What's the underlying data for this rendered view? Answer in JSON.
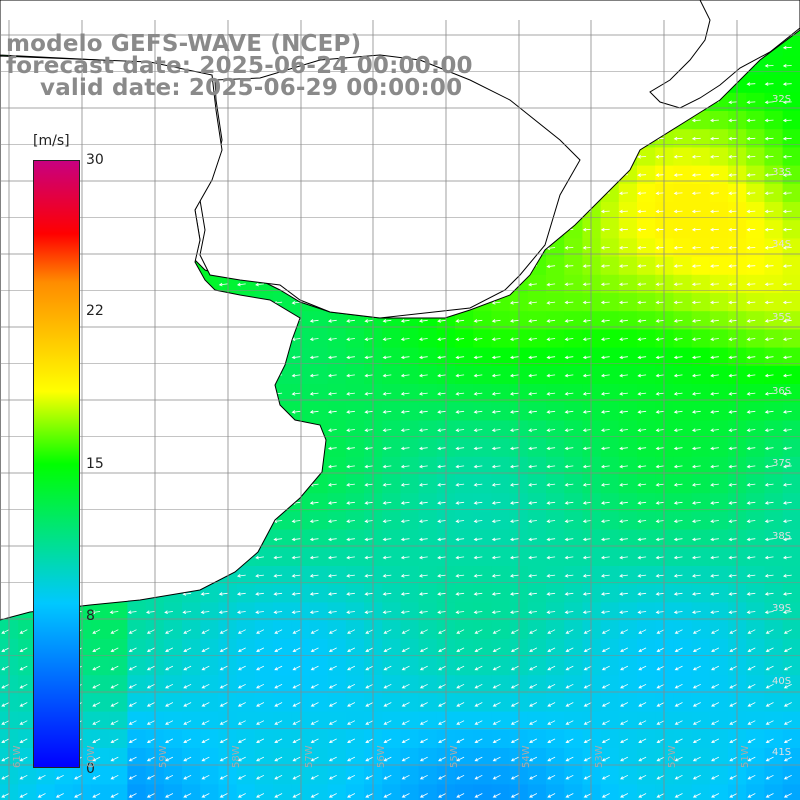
{
  "title": {
    "line1": "modelo GEFS-WAVE (NCEP)",
    "line2": "forecast date: 2025-06-24 00:00:00",
    "line3": "valid date: 2025-06-29 00:00:00"
  },
  "colorbar": {
    "units": "[m/s]",
    "ticks": [
      "30",
      "22",
      "15",
      "8",
      "0"
    ],
    "colors": [
      "#0000ff",
      "#00c8ff",
      "#00ff00",
      "#ffff00",
      "#ff8c00",
      "#ff0000",
      "#c80080"
    ]
  },
  "latitude_labels": [
    "32S",
    "33S",
    "34S",
    "35S",
    "36S",
    "37S",
    "38S",
    "39S",
    "40S",
    "41S"
  ],
  "longitude_labels": [
    "61W",
    "60W",
    "59W",
    "58W",
    "57W",
    "56W",
    "55W",
    "54W",
    "53W",
    "52W",
    "51W"
  ],
  "field": {
    "variable": "wind speed",
    "units": "m/s",
    "wind_direction": "mostly from the east/southeast"
  }
}
